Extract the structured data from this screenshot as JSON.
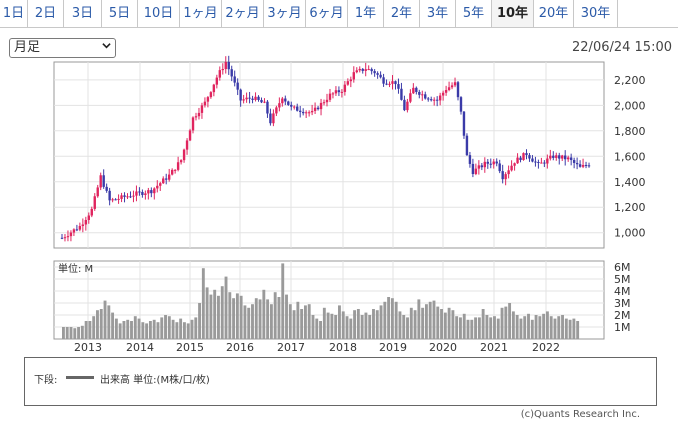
{
  "tabs": [
    {
      "label": "1日"
    },
    {
      "label": "2日"
    },
    {
      "label": "3日"
    },
    {
      "label": "5日"
    },
    {
      "label": "10日"
    },
    {
      "label": "1ヶ月"
    },
    {
      "label": "2ヶ月"
    },
    {
      "label": "3ヶ月"
    },
    {
      "label": "6ヶ月"
    },
    {
      "label": "1年"
    },
    {
      "label": "2年"
    },
    {
      "label": "3年"
    },
    {
      "label": "5年"
    },
    {
      "label": "10年"
    },
    {
      "label": "20年"
    },
    {
      "label": "30年"
    }
  ],
  "active_tab": "10年",
  "period_select": {
    "value": "月足"
  },
  "timestamp": "22/06/24 15:00",
  "legend": {
    "label": "下段:",
    "text": "出来高 単位:(M株/口/枚)",
    "color": "#666666"
  },
  "credit": "(c)Quants Research Inc.",
  "colors": {
    "up": "#e0245e",
    "down": "#3a3aa8",
    "volume": "#9a9a9a",
    "grid": "#e3e3e3"
  },
  "chart_data": [
    {
      "type": "candlestick",
      "title": "",
      "x_labels": [
        "2013",
        "2014",
        "2015",
        "2016",
        "2017",
        "2018",
        "2019",
        "2020",
        "2021",
        "2022"
      ],
      "y_ticks": [
        1000,
        1200,
        1400,
        1600,
        1800,
        2000,
        2200
      ],
      "ylim": [
        880,
        2340
      ],
      "grid": true,
      "anchors": [
        {
          "i": 0,
          "v": 960
        },
        {
          "i": 6,
          "v": 1050
        },
        {
          "i": 10,
          "v": 1180
        },
        {
          "i": 13,
          "v": 1440
        },
        {
          "i": 16,
          "v": 1250
        },
        {
          "i": 24,
          "v": 1300
        },
        {
          "i": 30,
          "v": 1330
        },
        {
          "i": 36,
          "v": 1450
        },
        {
          "i": 40,
          "v": 1570
        },
        {
          "i": 44,
          "v": 1900
        },
        {
          "i": 48,
          "v": 2020
        },
        {
          "i": 52,
          "v": 2220
        },
        {
          "i": 55,
          "v": 2340
        },
        {
          "i": 57,
          "v": 2230
        },
        {
          "i": 60,
          "v": 2040
        },
        {
          "i": 64,
          "v": 2060
        },
        {
          "i": 68,
          "v": 2010
        },
        {
          "i": 70,
          "v": 1870
        },
        {
          "i": 74,
          "v": 2070
        },
        {
          "i": 77,
          "v": 1980
        },
        {
          "i": 84,
          "v": 1940
        },
        {
          "i": 90,
          "v": 2080
        },
        {
          "i": 94,
          "v": 2120
        },
        {
          "i": 98,
          "v": 2250
        },
        {
          "i": 102,
          "v": 2290
        },
        {
          "i": 105,
          "v": 2260
        },
        {
          "i": 108,
          "v": 2190
        },
        {
          "i": 112,
          "v": 2180
        },
        {
          "i": 115,
          "v": 1970
        },
        {
          "i": 118,
          "v": 2130
        },
        {
          "i": 122,
          "v": 2070
        },
        {
          "i": 126,
          "v": 2040
        },
        {
          "i": 129,
          "v": 2130
        },
        {
          "i": 132,
          "v": 2170
        },
        {
          "i": 134,
          "v": 1940
        },
        {
          "i": 136,
          "v": 1600
        },
        {
          "i": 138,
          "v": 1480
        },
        {
          "i": 142,
          "v": 1540
        },
        {
          "i": 146,
          "v": 1560
        },
        {
          "i": 148,
          "v": 1440
        },
        {
          "i": 152,
          "v": 1560
        },
        {
          "i": 156,
          "v": 1620
        },
        {
          "i": 160,
          "v": 1530
        },
        {
          "i": 165,
          "v": 1600
        },
        {
          "i": 170,
          "v": 1580
        },
        {
          "i": 174,
          "v": 1510
        },
        {
          "i": 177,
          "v": 1540
        }
      ],
      "volume_ticks": [
        "1M",
        "2M",
        "3M",
        "4M",
        "5M",
        "6M"
      ],
      "volume_label": "単位: M",
      "volume_ylim": [
        0,
        6.5
      ],
      "volume_values": [
        1.0,
        1.0,
        1.0,
        0.9,
        1.0,
        1.1,
        1.5,
        1.5,
        1.9,
        2.4,
        2.5,
        3.2,
        2.8,
        2.2,
        1.7,
        1.3,
        1.5,
        1.6,
        1.5,
        1.9,
        1.7,
        1.4,
        1.3,
        1.5,
        1.6,
        1.4,
        1.8,
        2.0,
        1.9,
        1.6,
        1.4,
        1.7,
        1.4,
        1.3,
        1.6,
        1.8,
        3.0,
        5.9,
        4.3,
        3.7,
        4.1,
        3.6,
        4.4,
        5.2,
        3.9,
        3.4,
        3.8,
        3.6,
        2.8,
        2.6,
        2.9,
        3.4,
        3.3,
        4.1,
        3.3,
        2.9,
        3.9,
        3.5,
        6.3,
        3.7,
        2.9,
        2.4,
        3.1,
        2.5,
        2.8,
        2.9,
        2.0,
        1.7,
        1.5,
        2.6,
        2.2,
        2.1,
        2.0,
        2.8,
        2.3,
        1.9,
        1.7,
        2.4,
        2.5,
        2.0,
        2.2,
        2.0,
        2.5,
        2.4,
        2.8,
        3.1,
        3.5,
        3.4,
        3.1,
        2.3,
        2.0,
        1.8,
        2.6,
        2.4,
        3.3,
        2.6,
        2.9,
        3.1,
        3.2,
        2.7,
        2.5,
        2.2,
        2.6,
        2.4,
        1.9,
        1.8,
        2.1,
        1.6,
        1.6,
        1.8,
        1.8,
        2.5,
        2.0,
        1.8,
        1.9,
        1.7,
        2.6,
        2.7,
        3.0,
        2.3,
        2.0,
        1.7,
        1.9,
        2.1,
        1.6,
        2.0,
        1.9,
        2.1,
        2.3,
        1.9,
        1.7,
        1.9,
        2.0,
        1.7,
        1.6,
        1.7,
        1.5
      ]
    }
  ]
}
